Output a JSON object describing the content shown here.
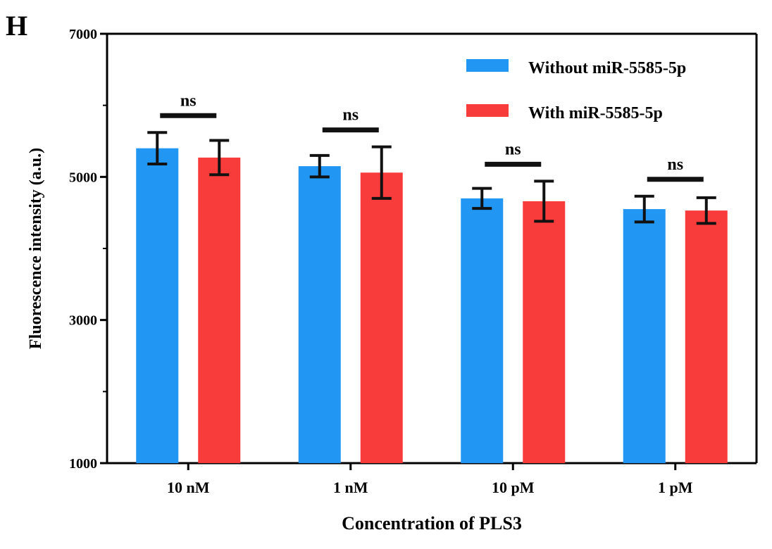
{
  "panel_label": "H",
  "chart_data": {
    "type": "bar",
    "xlabel": "Concentration of PLS3",
    "ylabel": "Fluorescence intensity (a.u.)",
    "ylim": [
      1000,
      7000
    ],
    "yticks": [
      1000,
      3000,
      5000,
      7000
    ],
    "categories": [
      "10 nM",
      "1 nM",
      "10 pM",
      "1 pM"
    ],
    "series": [
      {
        "name": "Without miR-5585-5p",
        "color": "#2196F3",
        "values": [
          5400,
          5150,
          4700,
          4550
        ],
        "errors": [
          220,
          150,
          140,
          180
        ]
      },
      {
        "name": "With miR-5585-5p",
        "color": "#F83C3C",
        "values": [
          5270,
          5060,
          4660,
          4530
        ],
        "errors": [
          240,
          360,
          280,
          180
        ]
      }
    ],
    "significance": [
      "ns",
      "ns",
      "ns",
      "ns"
    ],
    "legend_position": "top-right",
    "grid": false
  }
}
